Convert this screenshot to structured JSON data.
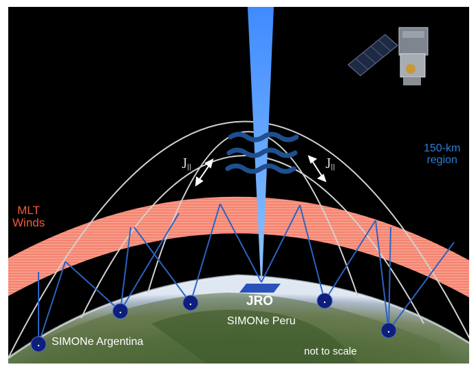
{
  "labels": {
    "mlt_line1": "MLT",
    "mlt_line2": "Winds",
    "region_line1": "150-km",
    "region_line2": "region",
    "jro": "JRO",
    "simone_peru": "SIMONe Peru",
    "simone_argentina": "SIMONe Argentina",
    "not_to_scale": "not to scale",
    "j_symbol": "J",
    "j_subscript": "||"
  },
  "colors": {
    "sky": "#000000",
    "mlt_band": "#f58470",
    "region_text": "#2f7ed8",
    "radar_beam": "#4f97ff",
    "wave": "#1f4f8f",
    "link_lines": "#2b63c2",
    "station": "#0d1f7a",
    "field_lines": "#d2d2d2",
    "earth_ocean": "#3a6a9a",
    "earth_land": "#6b7a4c"
  },
  "icons": {
    "satellite": "satellite-icon",
    "radar": "radar-antenna-icon",
    "station": "receiver-station-icon"
  }
}
